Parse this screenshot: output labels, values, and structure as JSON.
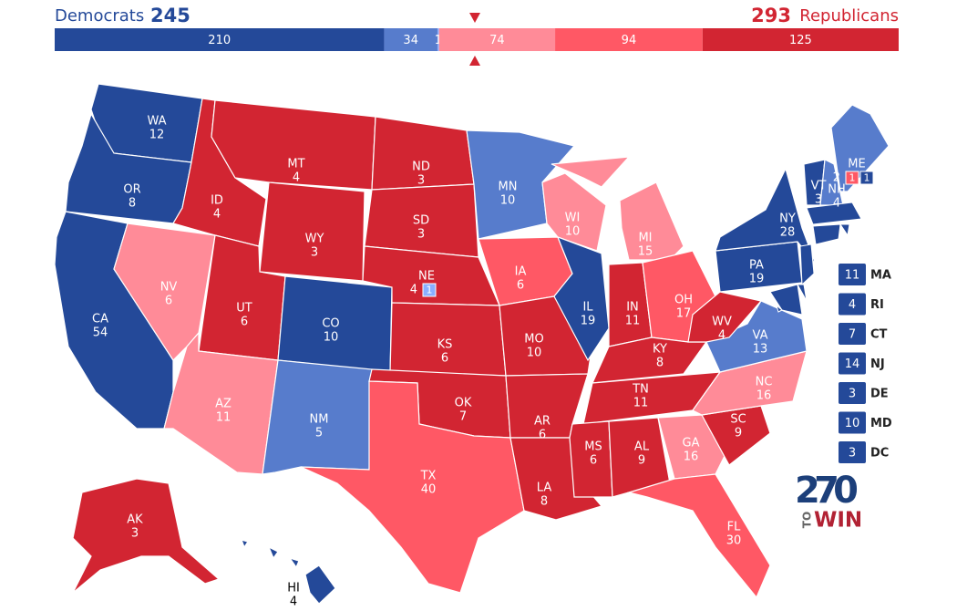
{
  "header": {
    "democrats": {
      "label": "Democrats",
      "total": 245
    },
    "republicans": {
      "label": "Republicans",
      "total": 293
    }
  },
  "bar": [
    {
      "value": 210,
      "color": "#244999"
    },
    {
      "value": 34,
      "color": "#577ccc"
    },
    {
      "value": 1,
      "color": "#8aafff"
    },
    {
      "value": 74,
      "color": "#ff8b98"
    },
    {
      "value": 94,
      "color": "#ff5865"
    },
    {
      "value": 125,
      "color": "#d22532"
    }
  ],
  "states": [
    {
      "abbr": "WA",
      "votes": 12,
      "color": "#244999"
    },
    {
      "abbr": "OR",
      "votes": 8,
      "color": "#244999"
    },
    {
      "abbr": "CA",
      "votes": 54,
      "color": "#244999"
    },
    {
      "abbr": "NV",
      "votes": 6,
      "color": "#ff8b98"
    },
    {
      "abbr": "ID",
      "votes": 4,
      "color": "#d22532"
    },
    {
      "abbr": "MT",
      "votes": 4,
      "color": "#d22532"
    },
    {
      "abbr": "WY",
      "votes": 3,
      "color": "#d22532"
    },
    {
      "abbr": "UT",
      "votes": 6,
      "color": "#d22532"
    },
    {
      "abbr": "AZ",
      "votes": 11,
      "color": "#ff8b98"
    },
    {
      "abbr": "CO",
      "votes": 10,
      "color": "#244999"
    },
    {
      "abbr": "NM",
      "votes": 5,
      "color": "#577ccc"
    },
    {
      "abbr": "ND",
      "votes": 3,
      "color": "#d22532"
    },
    {
      "abbr": "SD",
      "votes": 3,
      "color": "#d22532"
    },
    {
      "abbr": "NE",
      "votes": 4,
      "color": "#d22532",
      "districts": [
        {
          "votes": 1,
          "color": "#8aafff"
        }
      ]
    },
    {
      "abbr": "KS",
      "votes": 6,
      "color": "#d22532"
    },
    {
      "abbr": "OK",
      "votes": 7,
      "color": "#d22532"
    },
    {
      "abbr": "TX",
      "votes": 40,
      "color": "#ff5865"
    },
    {
      "abbr": "MN",
      "votes": 10,
      "color": "#577ccc"
    },
    {
      "abbr": "IA",
      "votes": 6,
      "color": "#ff5865"
    },
    {
      "abbr": "MO",
      "votes": 10,
      "color": "#d22532"
    },
    {
      "abbr": "AR",
      "votes": 6,
      "color": "#d22532"
    },
    {
      "abbr": "LA",
      "votes": 8,
      "color": "#d22532"
    },
    {
      "abbr": "WI",
      "votes": 10,
      "color": "#ff8b98"
    },
    {
      "abbr": "IL",
      "votes": 19,
      "color": "#244999"
    },
    {
      "abbr": "MI",
      "votes": 15,
      "color": "#ff8b98"
    },
    {
      "abbr": "IN",
      "votes": 11,
      "color": "#d22532"
    },
    {
      "abbr": "OH",
      "votes": 17,
      "color": "#ff5865"
    },
    {
      "abbr": "KY",
      "votes": 8,
      "color": "#d22532"
    },
    {
      "abbr": "TN",
      "votes": 11,
      "color": "#d22532"
    },
    {
      "abbr": "MS",
      "votes": 6,
      "color": "#d22532"
    },
    {
      "abbr": "AL",
      "votes": 9,
      "color": "#d22532"
    },
    {
      "abbr": "GA",
      "votes": 16,
      "color": "#ff8b98"
    },
    {
      "abbr": "FL",
      "votes": 30,
      "color": "#ff5865"
    },
    {
      "abbr": "SC",
      "votes": 9,
      "color": "#d22532"
    },
    {
      "abbr": "NC",
      "votes": 16,
      "color": "#ff8b98"
    },
    {
      "abbr": "VA",
      "votes": 13,
      "color": "#577ccc"
    },
    {
      "abbr": "WV",
      "votes": 4,
      "color": "#d22532"
    },
    {
      "abbr": "PA",
      "votes": 19,
      "color": "#244999"
    },
    {
      "abbr": "NY",
      "votes": 28,
      "color": "#244999"
    },
    {
      "abbr": "VT",
      "votes": 3,
      "color": "#244999"
    },
    {
      "abbr": "NH",
      "votes": 4,
      "color": "#577ccc"
    },
    {
      "abbr": "ME",
      "votes": 2,
      "color": "#577ccc",
      "districts": [
        {
          "votes": 1,
          "color": "#ff5865"
        },
        {
          "votes": 1,
          "color": "#244999"
        }
      ]
    },
    {
      "abbr": "AK",
      "votes": 3,
      "color": "#d22532"
    },
    {
      "abbr": "HI",
      "votes": 4,
      "color": "#244999"
    }
  ],
  "small_states": [
    {
      "abbr": "MA",
      "votes": 11,
      "color": "#244999"
    },
    {
      "abbr": "RI",
      "votes": 4,
      "color": "#244999"
    },
    {
      "abbr": "CT",
      "votes": 7,
      "color": "#244999"
    },
    {
      "abbr": "NJ",
      "votes": 14,
      "color": "#244999"
    },
    {
      "abbr": "DE",
      "votes": 3,
      "color": "#244999"
    },
    {
      "abbr": "MD",
      "votes": 10,
      "color": "#244999"
    },
    {
      "abbr": "DC",
      "votes": 3,
      "color": "#244999"
    }
  ],
  "logo": {
    "number": "270",
    "to": "TO",
    "win": "WIN"
  }
}
